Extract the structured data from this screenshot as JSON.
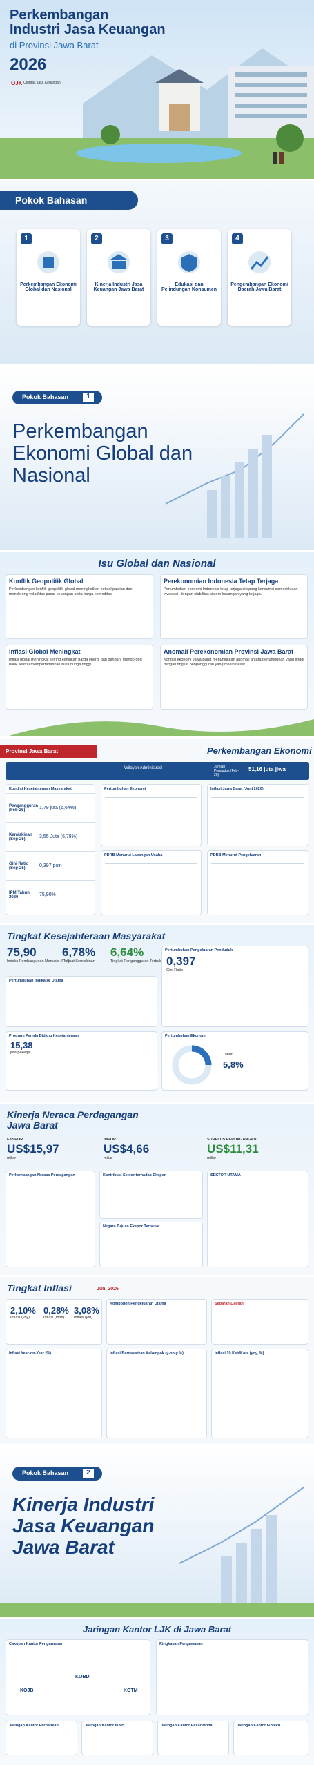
{
  "cover": {
    "title_line1": "Perkembangan",
    "title_line2": "Industri Jasa Keuangan",
    "subtitle": "di Provinsi Jawa Barat",
    "year": "2026",
    "logo": "OJK",
    "org": "Otoritas Jasa Keuangan"
  },
  "agenda": {
    "title": "Pokok Bahasan",
    "items": [
      {
        "number": "1",
        "label": "Perkembangan Ekonomi Global dan Nasional"
      },
      {
        "number": "2",
        "label": "Kinerja Industri Jasa Keuangan Jawa Barat"
      },
      {
        "number": "3",
        "label": "Edukasi dan Pelindungan Konsumen"
      },
      {
        "number": "4",
        "label": "Pengembangan Ekonomi Daerah Jawa Barat"
      }
    ]
  },
  "section1": {
    "tag": "Pokok Bahasan",
    "number": "1",
    "title": "Perkembangan Ekonomi Global dan Nasional"
  },
  "issues": {
    "title": "Isu Global dan Nasional",
    "boxes": [
      {
        "heading": "Konflik Geopolitik Global",
        "text": "Perkembangan konflik geopolitik global meningkatkan ketidakpastian dan mendorong volatilitas pasar keuangan serta harga komoditas."
      },
      {
        "heading": "Perekonomian Indonesia Tetap Terjaga",
        "text": "Pertumbuhan ekonomi Indonesia tetap terjaga ditopang konsumsi domestik dan investasi, dengan stabilitas sistem keuangan yang terjaga."
      },
      {
        "heading": "Inflasi Global Meningkat",
        "text": "Inflasi global meningkat seiring kenaikan harga energi dan pangan, mendorong bank sentral mempertahankan suku bunga tinggi."
      },
      {
        "heading": "Anomali Perekonomian Provinsi Jawa Barat",
        "text": "Kondisi ekonomi Jawa Barat menunjukkan anomali antara pertumbuhan yang tinggi dengan tingkat pengangguran yang masih besar."
      }
    ]
  },
  "economy": {
    "region": "Provinsi Jawa Barat",
    "title": "Perkembangan Ekonomi",
    "admin_label": "Wilayah Administrasi",
    "pop_label": "Jumlah Penduduk (Feb-26)",
    "pop_value": "51,16 juta jiwa",
    "table_title": "Kondisi Kesejahteraan Masyarakat",
    "rows": [
      {
        "label": "Pengangguran (Feb-26)",
        "value": "1,79 juta (6,64%)"
      },
      {
        "label": "Kemiskinan (Sep-25)",
        "value": "3,55 Juta (6,78%)"
      },
      {
        "label": "Gini Ratio (Sep-25)",
        "value": "0,397 poin"
      },
      {
        "label": "IPM Tahun 2026",
        "value": "75,90%"
      }
    ],
    "panels": [
      "Pertumbuhan Ekonomi",
      "Inflasi Jawa Barat (Juni 2026)",
      "PDRB Menurut Lapangan Usaha",
      "PDRB Menurut Pengeluaran"
    ]
  },
  "welfare": {
    "title": "Tingkat Kesejahteraan Masyarakat",
    "kpis": [
      {
        "value": "75,90",
        "label": "Indeks Pembangunan Manusia (IPM)"
      },
      {
        "value": "6,78%",
        "label": "Tingkat Kemiskinan"
      },
      {
        "value": "6,64%",
        "label": "Tingkat Pengangguran Terbuka"
      }
    ],
    "gini": "0,397",
    "gini_label": "Gini Ratio",
    "growth_label": "Pertumbuhan Ekonomi",
    "growth_year": "Tahun",
    "growth_value": "5,8%",
    "workers": "15,38",
    "workers_label": "juta pekerja",
    "panels": [
      "Pertumbuhan Indikator Utama",
      "Pertumbuhan Pengeluaran Penduduk",
      "Program Pemda Bidang Kesejahteraan"
    ]
  },
  "trade": {
    "title": "Kinerja Neraca Perdagangan Jawa Barat",
    "items": [
      {
        "label": "EKSPOR",
        "value": "US$15,97",
        "unit": "miliar"
      },
      {
        "label": "IMPOR",
        "value": "US$4,66",
        "unit": "miliar"
      },
      {
        "label": "SURPLUS PERDAGANGAN",
        "value": "US$11,31",
        "unit": "miliar"
      }
    ],
    "panels": [
      "Perkembangan Neraca Perdagangan",
      "Kontribusi Sektor terhadap Ekspor",
      "Negara Tujuan Ekspor Terbesar",
      "SEKTOR UTAMA"
    ]
  },
  "inflation": {
    "title": "Tingkat Inflasi",
    "period": "Juni 2026",
    "kpis": [
      {
        "value": "2,10%",
        "label": "Inflasi (yoy)"
      },
      {
        "value": "0,28%",
        "label": "Inflasi (mtm)"
      },
      {
        "value": "3,08%",
        "label": "Inflasi (ytd)"
      }
    ],
    "panels": [
      "Inflasi Year-on-Year (%)",
      "Inflasi Berdasarkan Kelompok (y-on-y %)",
      "Inflasi 10 Kab/Kota (yoy, %)",
      "Komponen Pengeluaran Utama",
      "Sebaran Daerah"
    ]
  },
  "section2": {
    "tag": "Pokok Bahasan",
    "number": "2",
    "title": "Kinerja Industri Jasa Keuangan Jawa Barat"
  },
  "network": {
    "title": "Jaringan Kantor LJK di Jawa Barat",
    "box1": "Cakupan Kantor Pengawasan",
    "box2": "Ringkasan Pengawasan",
    "offices": [
      "KOJB",
      "KOBD",
      "KOTM"
    ],
    "cards": [
      "Jaringan Kantor Perbankan",
      "Jaringan Kantor IKNB",
      "Jaringan Kantor Pasar Modal",
      "Jaringan Kantor Fintech"
    ]
  }
}
